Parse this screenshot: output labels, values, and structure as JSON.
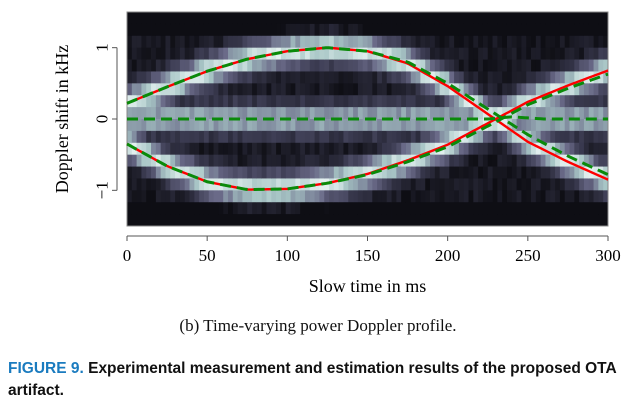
{
  "chart_data": {
    "type": "heatmap",
    "xlabel": "Slow time in ms",
    "ylabel": "Doppler shift in kHz",
    "xlim": [
      0,
      300
    ],
    "ylim": [
      -1.5,
      1.5
    ],
    "xticks": [
      "0",
      "50",
      "100",
      "150",
      "200",
      "250",
      "300"
    ],
    "yticks": [
      "−1",
      "0",
      "1"
    ],
    "grid": false,
    "colormap": [
      "#0e0e14",
      "#3c3c52",
      "#6a6a88",
      "#a8c6c6",
      "#f2fbfa"
    ],
    "series": [
      {
        "style": "solid",
        "color": "#ff0000",
        "x": [
          0,
          25,
          50,
          75,
          100,
          125,
          150,
          175,
          200,
          225,
          250,
          275,
          300
        ],
        "y": [
          0.22,
          0.45,
          0.67,
          0.84,
          0.95,
          1.0,
          0.95,
          0.78,
          0.46,
          0.07,
          -0.32,
          -0.6,
          -0.85
        ]
      },
      {
        "style": "solid",
        "color": "#ff0000",
        "x": [
          0,
          25,
          50,
          75,
          100,
          125,
          150,
          175,
          200,
          225,
          250,
          275,
          300
        ],
        "y": [
          -0.35,
          -0.66,
          -0.88,
          -0.99,
          -0.98,
          -0.9,
          -0.77,
          -0.58,
          -0.36,
          -0.06,
          0.24,
          0.47,
          0.68
        ]
      },
      {
        "style": "dashed",
        "color": "#0a8a0a",
        "x": [
          0,
          25,
          50,
          75,
          100,
          125,
          150,
          175,
          200,
          225,
          250,
          275,
          300
        ],
        "y": [
          0.22,
          0.45,
          0.67,
          0.84,
          0.95,
          1.0,
          0.95,
          0.8,
          0.5,
          0.14,
          -0.22,
          -0.52,
          -0.78
        ]
      },
      {
        "style": "dashed",
        "color": "#0a8a0a",
        "x": [
          0,
          25,
          50,
          75,
          100,
          125,
          150,
          175,
          200,
          225,
          250,
          275,
          300
        ],
        "y": [
          -0.35,
          -0.66,
          -0.88,
          -0.99,
          -0.98,
          -0.9,
          -0.78,
          -0.6,
          -0.39,
          -0.1,
          0.2,
          0.43,
          0.63
        ]
      },
      {
        "style": "dashed",
        "color": "#0a8a0a",
        "x": [
          0,
          50,
          100,
          150,
          200,
          225,
          240,
          260,
          300
        ],
        "y": [
          0,
          0,
          0,
          0,
          0,
          0,
          0.03,
          0,
          0
        ]
      }
    ]
  },
  "subcaption": "(b) Time-varying power Doppler profile.",
  "figure": {
    "label": "FIGURE 9.",
    "text": " Experimental measurement and estimation results of the proposed OTA artifact.",
    "label_color": "#1a7bbf"
  }
}
